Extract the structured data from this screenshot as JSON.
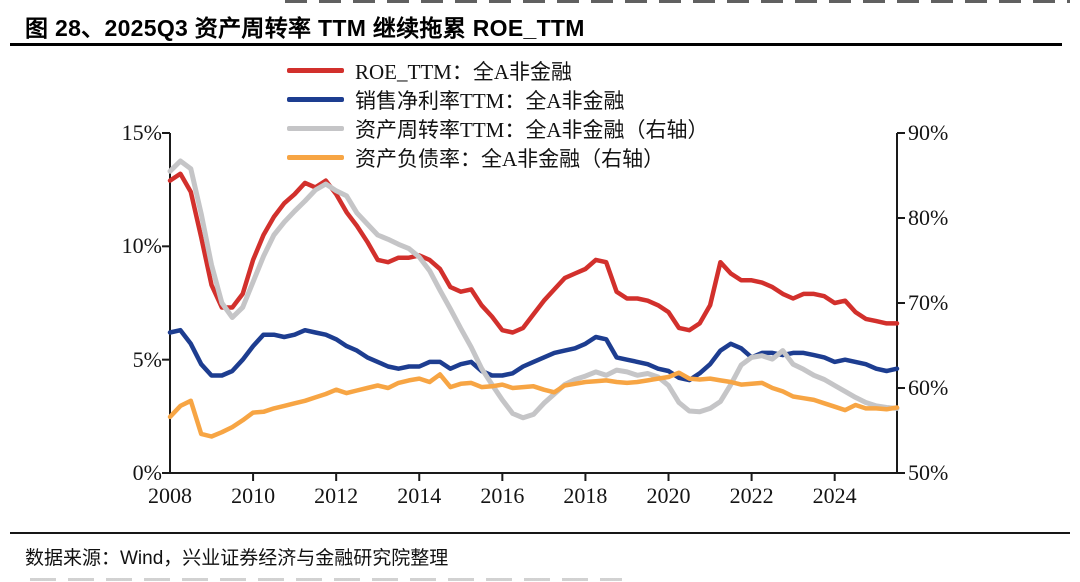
{
  "figure": {
    "title": "图 28、2025Q3 资产周转率 TTM 继续拖累 ROE_TTM",
    "source": "数据来源：Wind，兴业证券经济与金融研究院整理"
  },
  "chart_data": {
    "type": "line",
    "x_unit": "quarter",
    "x_start": "2008Q1",
    "x_end": "2025Q3",
    "grid": false,
    "legend_position": "top",
    "x_tick_labels": [
      "2008",
      "2010",
      "2012",
      "2014",
      "2016",
      "2018",
      "2020",
      "2022",
      "2024"
    ],
    "left_axis": {
      "min": 0,
      "max": 15,
      "tick_labels": [
        "15%",
        "10%",
        "5%",
        "0%"
      ]
    },
    "right_axis": {
      "min": 50,
      "max": 90,
      "tick_labels": [
        "90%",
        "80%",
        "70%",
        "60%",
        "50%"
      ]
    },
    "series": [
      {
        "name": "ROE_TTM：全A非金融",
        "axis": "left",
        "color": "#d2302c",
        "values": [
          12.9,
          13.2,
          12.4,
          10.4,
          8.3,
          7.3,
          7.3,
          7.9,
          9.4,
          10.5,
          11.3,
          11.9,
          12.3,
          12.8,
          12.6,
          12.9,
          12.3,
          11.5,
          10.9,
          10.2,
          9.4,
          9.3,
          9.5,
          9.5,
          9.6,
          9.4,
          9.0,
          8.2,
          8.0,
          8.1,
          7.4,
          6.9,
          6.3,
          6.2,
          6.4,
          7.0,
          7.6,
          8.1,
          8.6,
          8.8,
          9.0,
          9.4,
          9.3,
          8.0,
          7.7,
          7.7,
          7.6,
          7.4,
          7.1,
          6.4,
          6.3,
          6.6,
          7.4,
          9.3,
          8.8,
          8.5,
          8.5,
          8.4,
          8.2,
          7.9,
          7.7,
          7.9,
          7.9,
          7.8,
          7.5,
          7.6,
          7.1,
          6.8,
          6.7,
          6.6,
          6.6
        ]
      },
      {
        "name": "销售净利率TTM：全A非金融",
        "axis": "left",
        "color": "#1d3d90",
        "values": [
          6.2,
          6.3,
          5.7,
          4.8,
          4.3,
          4.3,
          4.5,
          5.0,
          5.6,
          6.1,
          6.1,
          6.0,
          6.1,
          6.3,
          6.2,
          6.1,
          5.9,
          5.6,
          5.4,
          5.1,
          4.9,
          4.7,
          4.6,
          4.7,
          4.7,
          4.9,
          4.9,
          4.6,
          4.8,
          4.9,
          4.5,
          4.3,
          4.3,
          4.4,
          4.7,
          4.9,
          5.1,
          5.3,
          5.4,
          5.5,
          5.7,
          6.0,
          5.9,
          5.1,
          5.0,
          4.9,
          4.8,
          4.6,
          4.5,
          4.2,
          4.1,
          4.4,
          4.8,
          5.4,
          5.7,
          5.5,
          5.1,
          5.3,
          5.3,
          5.2,
          5.3,
          5.3,
          5.2,
          5.1,
          4.9,
          5.0,
          4.9,
          4.8,
          4.6,
          4.5,
          4.6
        ]
      },
      {
        "name": "资产周转率TTM：全A非金融（右轴）",
        "axis": "right",
        "color": "#c5c5c7",
        "values": [
          85.5,
          86.7,
          85.8,
          80.5,
          74.5,
          70.0,
          68.3,
          69.5,
          72.5,
          75.5,
          78.0,
          79.5,
          80.8,
          82.0,
          83.3,
          84.0,
          83.2,
          82.6,
          80.6,
          79.3,
          78.0,
          77.5,
          76.9,
          76.4,
          75.4,
          73.8,
          71.5,
          69.3,
          67.0,
          64.8,
          62.3,
          60.4,
          58.6,
          57.0,
          56.5,
          56.9,
          58.2,
          59.3,
          60.4,
          61.0,
          61.4,
          61.9,
          61.5,
          62.1,
          61.9,
          61.5,
          61.7,
          61.3,
          60.3,
          58.3,
          57.3,
          57.2,
          57.6,
          58.4,
          60.4,
          62.7,
          63.6,
          63.8,
          63.4,
          64.4,
          62.8,
          62.2,
          61.5,
          61.0,
          60.3,
          59.6,
          58.9,
          58.3,
          57.9,
          57.7,
          57.6
        ]
      },
      {
        "name": "资产负债率：全A非金融（右轴）",
        "axis": "right",
        "color": "#f7a544",
        "values": [
          56.6,
          57.9,
          58.5,
          54.6,
          54.3,
          54.8,
          55.4,
          56.2,
          57.1,
          57.2,
          57.6,
          57.9,
          58.2,
          58.5,
          58.9,
          59.3,
          59.8,
          59.4,
          59.7,
          60.0,
          60.3,
          60.0,
          60.6,
          60.9,
          61.1,
          60.7,
          61.6,
          60.1,
          60.5,
          60.6,
          60.1,
          60.2,
          60.4,
          60.0,
          60.1,
          60.2,
          59.8,
          59.5,
          60.3,
          60.5,
          60.7,
          60.8,
          60.9,
          60.7,
          60.6,
          60.7,
          60.9,
          61.1,
          61.3,
          61.8,
          61.1,
          61.0,
          61.1,
          60.9,
          60.7,
          60.4,
          60.5,
          60.6,
          60.0,
          59.6,
          59.0,
          58.8,
          58.6,
          58.2,
          57.8,
          57.4,
          58.0,
          57.6,
          57.6,
          57.5,
          57.7
        ]
      }
    ]
  }
}
